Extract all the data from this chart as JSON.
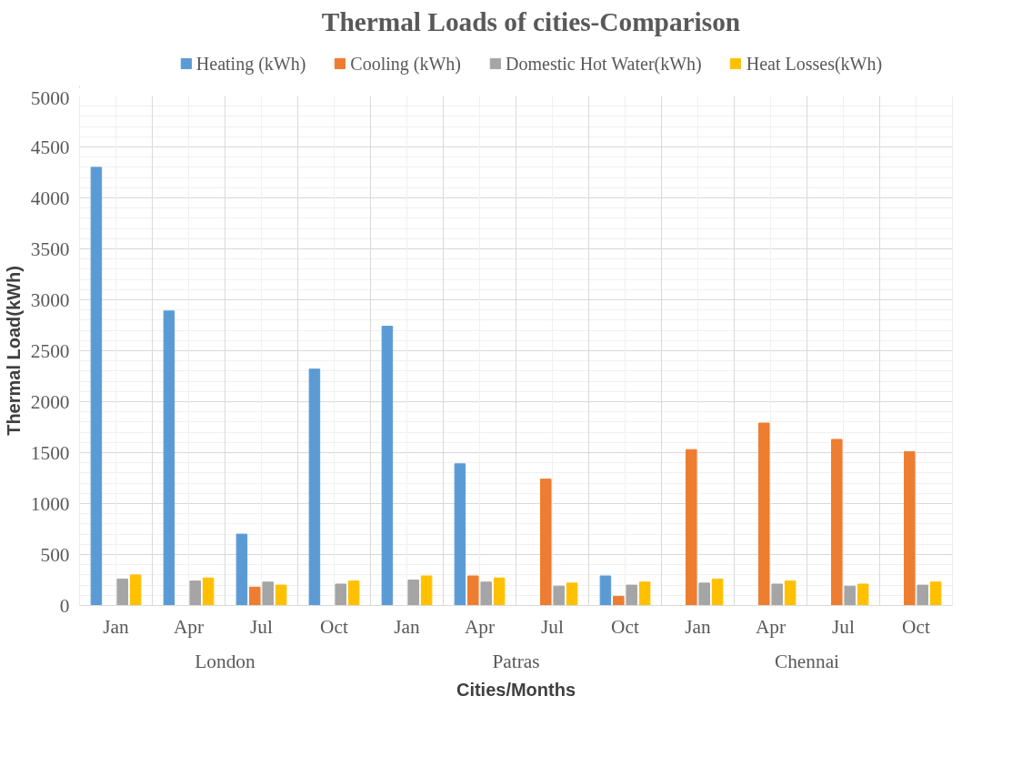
{
  "chart_data": {
    "type": "bar",
    "title": "Thermal Loads of cities-Comparison",
    "xlabel": "Cities/Months",
    "ylabel": "Thermal Load(kWh)",
    "categories": [
      "Jan",
      "Apr",
      "Jul",
      "Oct",
      "Jan",
      "Apr",
      "Jul",
      "Oct",
      "Jan",
      "Apr",
      "Jul",
      "Oct"
    ],
    "annotations": [
      "London",
      "Patras",
      "Chennai"
    ],
    "series": [
      {
        "name": "Heating (kWh)",
        "color": "#5b9bd5",
        "values": [
          4300,
          2890,
          700,
          2320,
          2740,
          1390,
          null,
          290,
          null,
          null,
          null,
          null
        ]
      },
      {
        "name": "Cooling (kWh)",
        "color": "#ed7d31",
        "values": [
          null,
          null,
          180,
          null,
          null,
          290,
          1240,
          90,
          1530,
          1790,
          1630,
          1510
        ]
      },
      {
        "name": "Domestic Hot Water(kWh)",
        "color": "#a5a5a5",
        "values": [
          260,
          240,
          230,
          210,
          250,
          230,
          190,
          200,
          220,
          210,
          190,
          200
        ]
      },
      {
        "name": "Heat Losses(kWh)",
        "color": "#ffc000",
        "values": [
          300,
          270,
          200,
          240,
          290,
          270,
          220,
          230,
          260,
          240,
          210,
          230
        ]
      }
    ],
    "ylim": [
      0,
      5000
    ],
    "yticks": [
      0,
      500,
      1000,
      1500,
      2000,
      2500,
      3000,
      3500,
      4000,
      4500,
      5000
    ],
    "grid": true,
    "legend": "top"
  }
}
